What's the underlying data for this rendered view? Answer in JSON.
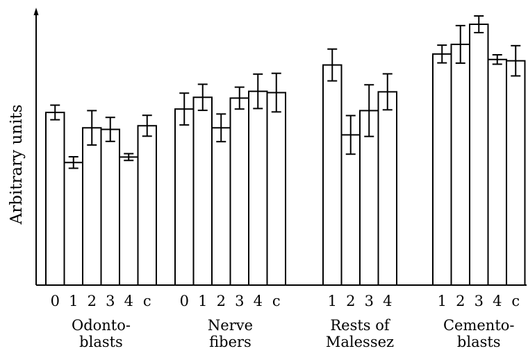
{
  "chart_data": {
    "type": "bar",
    "ylabel": "Arbitrary units",
    "xlabel": "",
    "y_ticks_shown": false,
    "grid": false,
    "ylim": [
      0,
      100
    ],
    "error_bars": true,
    "groups": [
      {
        "label_lines": [
          "Odonto-",
          "blasts"
        ],
        "categories": [
          "0",
          "1",
          "2",
          "3",
          "4",
          "c"
        ],
        "values": [
          66.2,
          47.0,
          60.3,
          59.7,
          49.1,
          61.1
        ],
        "errors": [
          2.8,
          2.2,
          6.6,
          4.6,
          1.3,
          4.0
        ]
      },
      {
        "label_lines": [
          "Nerve",
          "fibers"
        ],
        "categories": [
          "0",
          "1",
          "2",
          "3",
          "4",
          "c"
        ],
        "values": [
          67.5,
          72.0,
          60.3,
          71.7,
          74.3,
          73.8
        ],
        "errors": [
          6.1,
          5.0,
          5.3,
          4.2,
          6.6,
          7.4
        ]
      },
      {
        "label_lines": [
          "Rests of",
          "Malessez"
        ],
        "categories": [
          "1",
          "2",
          "3",
          "4"
        ],
        "values": [
          84.4,
          57.6,
          66.9,
          74.1
        ],
        "errors": [
          6.1,
          7.4,
          9.9,
          6.9
        ]
      },
      {
        "label_lines": [
          "Cemento-",
          "blasts"
        ],
        "categories": [
          "1",
          "2",
          "3",
          "4",
          "c"
        ],
        "values": [
          88.6,
          92.3,
          100.0,
          86.5,
          86.0
        ],
        "errors": [
          3.4,
          7.2,
          3.2,
          1.8,
          5.8
        ]
      }
    ]
  }
}
